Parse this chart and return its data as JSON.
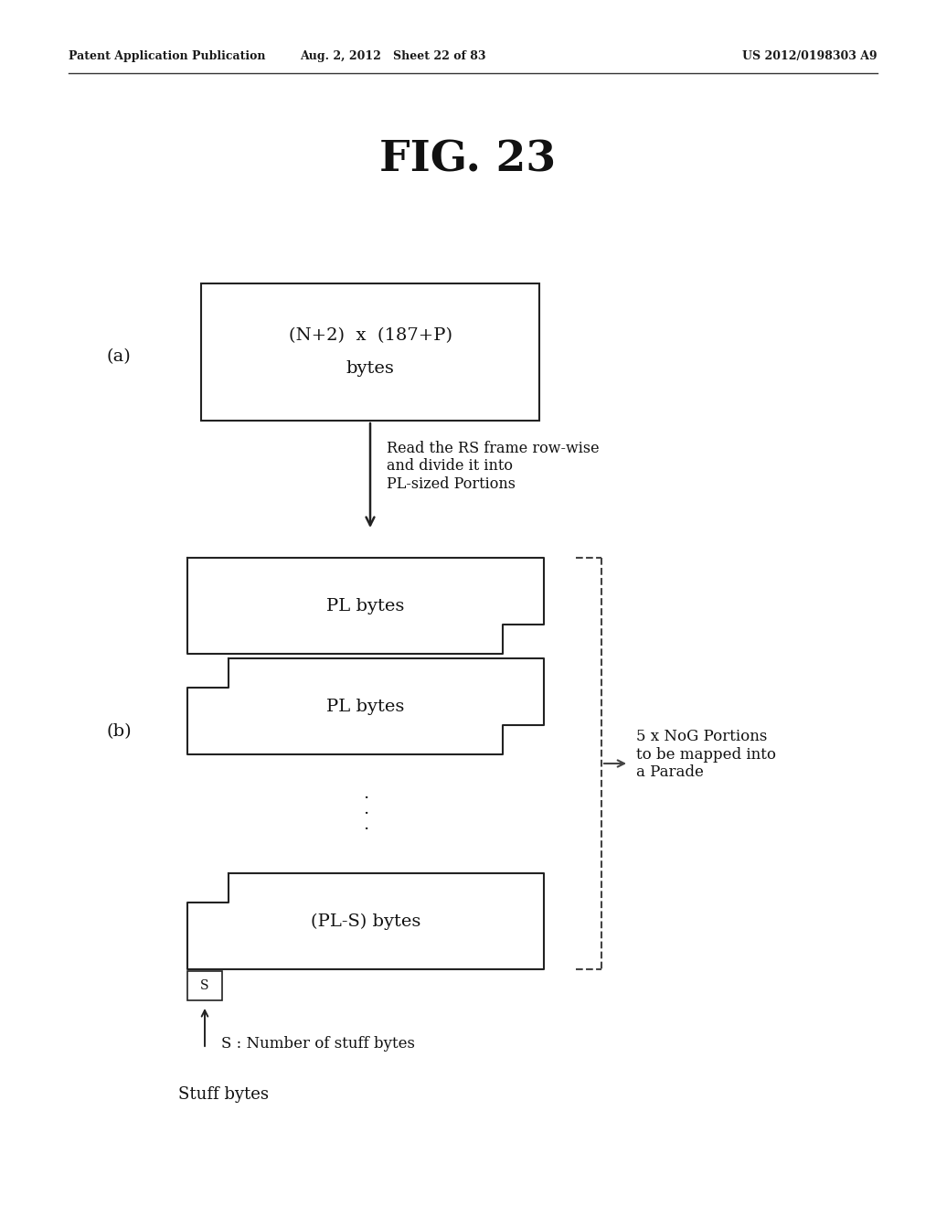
{
  "bg_color": "#ffffff",
  "header_left": "Patent Application Publication",
  "header_mid": "Aug. 2, 2012   Sheet 22 of 83",
  "header_right": "US 2012/0198303 A9",
  "fig_title": "FIG. 23",
  "label_a": "(a)",
  "label_b": "(b)",
  "box_a_text1": "(N+2)  x  (187+P)",
  "box_a_text2": "bytes",
  "arrow_text": "Read the RS frame row-wise\nand divide it into\nPL-sized Portions",
  "box_b1_text": "PL bytes",
  "box_b2_text": "PL bytes",
  "box_b3_text": "(PL-S) bytes",
  "box_s_text": "S",
  "dots_text": ".\n.\n.",
  "brace_text": "5 x NoG Portions\nto be mapped into\na Parade",
  "annotation_text": "S : Number of stuff bytes",
  "stuff_bytes_text": "Stuff bytes"
}
